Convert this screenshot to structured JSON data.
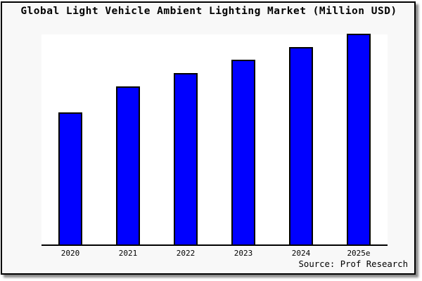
{
  "page": {
    "background": "#ffffff",
    "card_background": "#f8f8f8",
    "card_border_color": "#000000",
    "card_shadow_color": "#8a8a8a"
  },
  "chart_data": {
    "type": "bar",
    "title": "Global Light Vehicle Ambient Lighting Market (Million USD)",
    "categories": [
      "2020",
      "2021",
      "2022",
      "2023",
      "2024",
      "2025e"
    ],
    "values_pct_of_max": [
      62.7,
      75.0,
      81.3,
      87.7,
      93.7,
      100
    ],
    "value_note": "No y-axis scale, ticks or gridlines shown; values are relative bar heights as percent of the tallest bar (2025e).",
    "xlabel": "",
    "ylabel": "",
    "legend": false,
    "grid": false,
    "bar_color": "#0000ff",
    "bar_border_color": "#000000",
    "axis_color": "#000000",
    "source_label": "Source: Prof Research"
  }
}
